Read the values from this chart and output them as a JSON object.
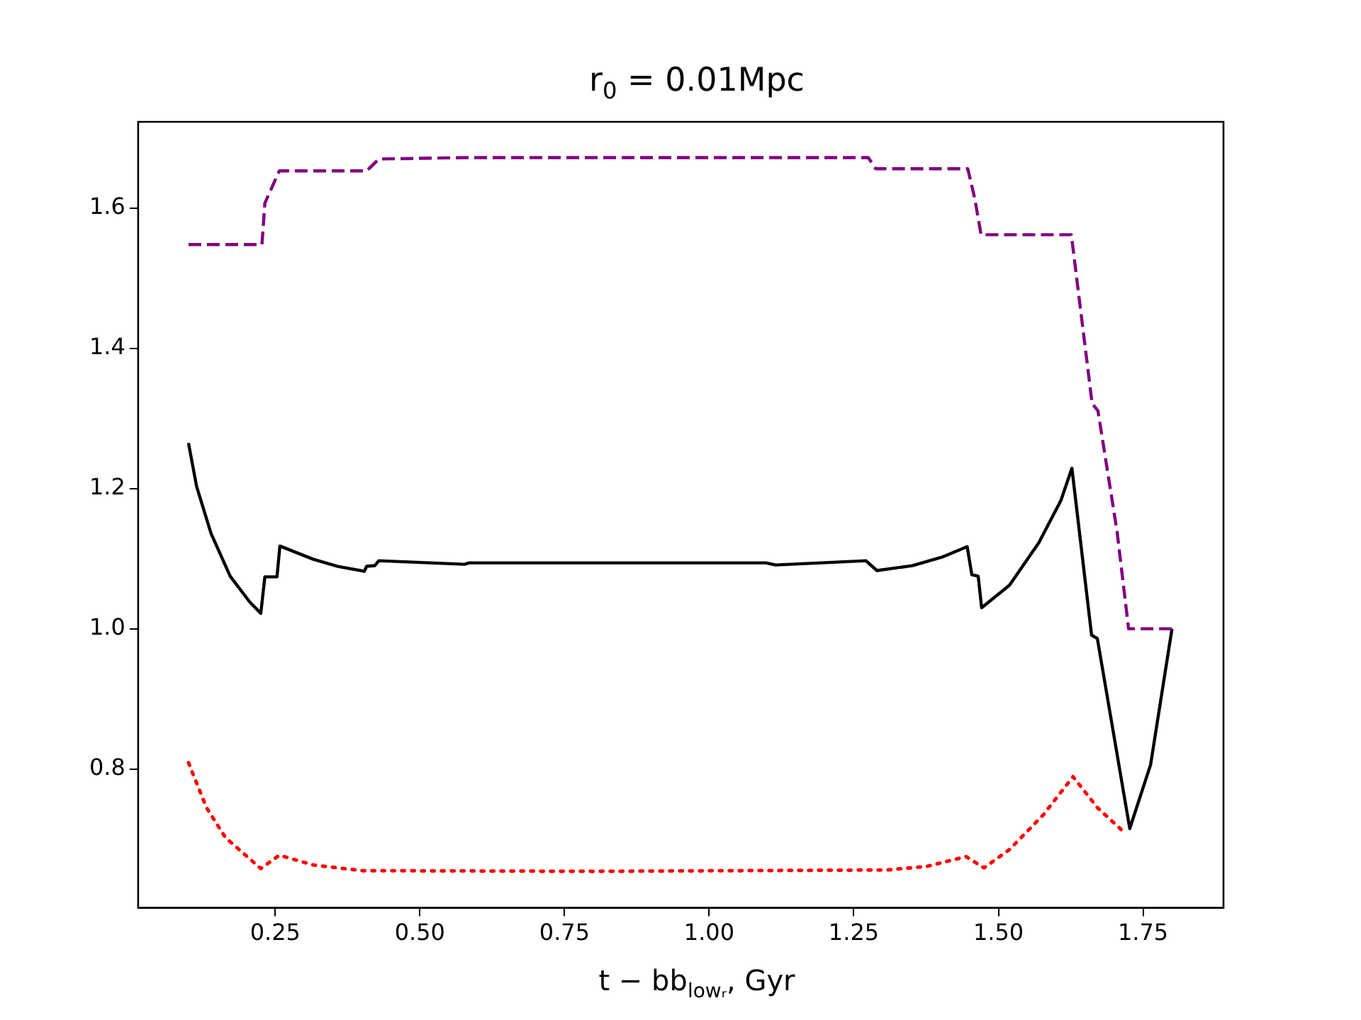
{
  "chart_data": {
    "type": "line",
    "title": "r$_{0}$ = 0.01Mpc",
    "xlabel": "t − bb$_{lowᵣ}$, Gyr",
    "xlim": [
      0.013,
      1.889
    ],
    "xticks": [
      {
        "value": 0.25,
        "label": "0.25"
      },
      {
        "value": 0.5,
        "label": "0.50"
      },
      {
        "value": 0.75,
        "label": "0.75"
      },
      {
        "value": 1.0,
        "label": "1.00"
      },
      {
        "value": 1.25,
        "label": "1.25"
      },
      {
        "value": 1.5,
        "label": "1.50"
      },
      {
        "value": 1.75,
        "label": "1.75"
      }
    ],
    "ylim": [
      0.602,
      1.723
    ],
    "yticks": [
      {
        "value": 0.8,
        "label": "0.8"
      },
      {
        "value": 1.0,
        "label": "1.0"
      },
      {
        "value": 1.2,
        "label": "1.2"
      },
      {
        "value": 1.4,
        "label": "1.4"
      },
      {
        "value": 1.6,
        "label": "1.6"
      }
    ],
    "grid": false,
    "legend": false,
    "marker": "none",
    "series": [
      {
        "color": "#800080",
        "line_style": "dashed",
        "x": [
          0.1,
          0.227,
          0.232,
          0.257,
          0.408,
          0.429,
          0.581,
          1.275,
          1.288,
          1.447,
          1.459,
          1.47,
          1.626,
          1.662,
          1.672,
          1.705,
          1.725,
          1.8
        ],
        "values": [
          1.548,
          1.548,
          1.607,
          1.653,
          1.653,
          1.67,
          1.672,
          1.672,
          1.656,
          1.656,
          1.614,
          1.562,
          1.562,
          1.321,
          1.311,
          1.139,
          1.0,
          1.0
        ]
      },
      {
        "color": "#000000",
        "line_style": "solid",
        "x": [
          0.1,
          0.114,
          0.139,
          0.172,
          0.206,
          0.225,
          0.232,
          0.253,
          0.258,
          0.316,
          0.358,
          0.404,
          0.408,
          0.422,
          0.429,
          0.577,
          0.585,
          1.098,
          1.115,
          1.271,
          1.29,
          1.351,
          1.402,
          1.446,
          1.454,
          1.465,
          1.471,
          1.519,
          1.57,
          1.608,
          1.627,
          1.661,
          1.671,
          1.727,
          1.763,
          1.8
        ],
        "values": [
          1.265,
          1.203,
          1.136,
          1.075,
          1.038,
          1.022,
          1.074,
          1.074,
          1.118,
          1.099,
          1.089,
          1.082,
          1.089,
          1.09,
          1.097,
          1.092,
          1.094,
          1.094,
          1.091,
          1.097,
          1.083,
          1.09,
          1.102,
          1.117,
          1.077,
          1.075,
          1.03,
          1.062,
          1.123,
          1.183,
          1.229,
          0.991,
          0.986,
          0.715,
          0.806,
          1.0
        ]
      },
      {
        "color": "#ff0000",
        "line_style": "dotted",
        "x": [
          0.1,
          0.131,
          0.164,
          0.225,
          0.257,
          0.316,
          0.4,
          0.8,
          1.308,
          1.376,
          1.444,
          1.475,
          1.519,
          1.578,
          1.629,
          1.671,
          1.713
        ],
        "values": [
          0.809,
          0.745,
          0.702,
          0.658,
          0.677,
          0.663,
          0.655,
          0.654,
          0.656,
          0.661,
          0.675,
          0.659,
          0.685,
          0.735,
          0.789,
          0.745,
          0.713
        ]
      }
    ]
  }
}
